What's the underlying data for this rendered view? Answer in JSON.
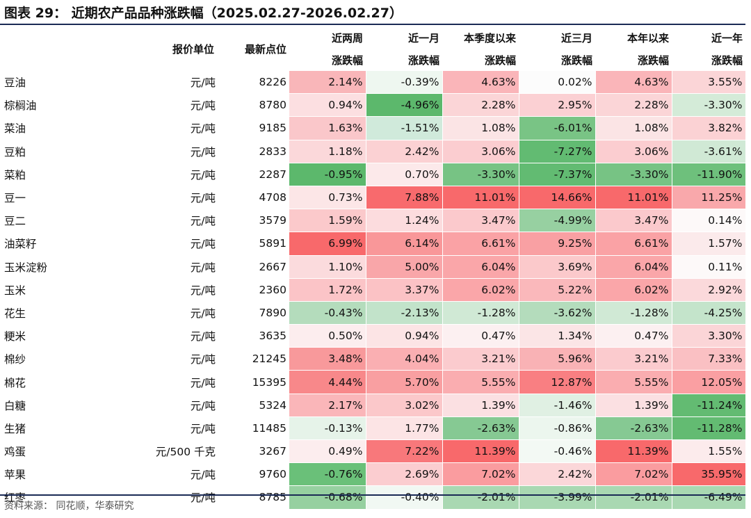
{
  "title": "图表 29：   近期农产品品种涨跌幅（2025.02.27-2026.02.27）",
  "headers": {
    "unit": "报价单位",
    "latest": "最新点位",
    "periods": [
      [
        "近两周",
        "涨跌幅"
      ],
      [
        "近一月",
        "涨跌幅"
      ],
      [
        "本季度以来",
        "涨跌幅"
      ],
      [
        "近三月",
        "涨跌幅"
      ],
      [
        "本年以来",
        "涨跌幅"
      ],
      [
        "近一年",
        "涨跌幅"
      ]
    ]
  },
  "rows": [
    {
      "name": "豆油",
      "unit": "元/吨",
      "latest": "8226",
      "values": [
        "2.14%",
        "-0.39%",
        "4.63%",
        "0.02%",
        "4.63%",
        "3.55%"
      ],
      "colors": [
        "#f9b6b9",
        "#eef7f0",
        "#fab5b9",
        "#fcfcfc",
        "#fab5b9",
        "#fbd5d7"
      ]
    },
    {
      "name": "棕榈油",
      "unit": "元/吨",
      "latest": "8780",
      "values": [
        "0.94%",
        "-4.96%",
        "2.28%",
        "2.95%",
        "2.28%",
        "-3.30%"
      ],
      "colors": [
        "#fcdfe1",
        "#5cb86c",
        "#fbd5d7",
        "#fbd0d3",
        "#fbd5d7",
        "#d4ebd8"
      ]
    },
    {
      "name": "菜油",
      "unit": "元/吨",
      "latest": "9185",
      "values": [
        "1.63%",
        "-1.51%",
        "1.08%",
        "-6.01%",
        "1.08%",
        "3.82%"
      ],
      "colors": [
        "#fac7ca",
        "#d0eadb",
        "#fbe4e5",
        "#79c485",
        "#fbe4e5",
        "#fbd2d4"
      ]
    },
    {
      "name": "豆粕",
      "unit": "元/吨",
      "latest": "2833",
      "values": [
        "1.18%",
        "2.42%",
        "3.06%",
        "-7.27%",
        "3.06%",
        "-3.61%"
      ],
      "colors": [
        "#fbd8da",
        "#fbd1d3",
        "#fbcdd0",
        "#62bb72",
        "#fbcdd0",
        "#d0e9d5"
      ]
    },
    {
      "name": "菜粕",
      "unit": "元/吨",
      "latest": "2287",
      "values": [
        "-0.95%",
        "0.70%",
        "-3.30%",
        "-7.37%",
        "-3.30%",
        "-11.90%"
      ],
      "colors": [
        "#5cb86c",
        "#fce9ea",
        "#77c384",
        "#62bb72",
        "#77c384",
        "#6ec07c"
      ]
    },
    {
      "name": "豆一",
      "unit": "元/吨",
      "latest": "4708",
      "values": [
        "0.73%",
        "7.88%",
        "11.01%",
        "14.66%",
        "11.01%",
        "11.25%"
      ],
      "colors": [
        "#fce6e7",
        "#f86a6d",
        "#f8696b",
        "#f8696b",
        "#f8696b",
        "#f9a8ab"
      ]
    },
    {
      "name": "豆二",
      "unit": "元/吨",
      "latest": "3579",
      "values": [
        "1.59%",
        "1.24%",
        "3.47%",
        "-4.99%",
        "3.47%",
        "0.14%"
      ],
      "colors": [
        "#fbc9cb",
        "#fcdcde",
        "#fbc9cc",
        "#97d0a1",
        "#fbc9cc",
        "#fdf9f9"
      ]
    },
    {
      "name": "油菜籽",
      "unit": "元/吨",
      "latest": "5891",
      "values": [
        "6.99%",
        "6.14%",
        "6.61%",
        "9.25%",
        "6.61%",
        "1.57%"
      ],
      "colors": [
        "#f8696b",
        "#f99799",
        "#faa2a5",
        "#f9a0a3",
        "#faa2a5",
        "#fbeaeb"
      ]
    },
    {
      "name": "玉米淀粉",
      "unit": "元/吨",
      "latest": "2667",
      "values": [
        "1.10%",
        "5.00%",
        "6.04%",
        "3.69%",
        "6.04%",
        "0.11%"
      ],
      "colors": [
        "#fbdbdd",
        "#f9a6a9",
        "#faa6a9",
        "#fbc9cb",
        "#faa6a9",
        "#fdf9f9"
      ]
    },
    {
      "name": "玉米",
      "unit": "元/吨",
      "latest": "2360",
      "values": [
        "1.72%",
        "3.37%",
        "6.02%",
        "5.22%",
        "6.02%",
        "2.92%"
      ],
      "colors": [
        "#fbc4c7",
        "#fbc2c5",
        "#faa6a9",
        "#fab8bb",
        "#faa6a9",
        "#fbd9db"
      ]
    },
    {
      "name": "花生",
      "unit": "元/吨",
      "latest": "7890",
      "values": [
        "-0.43%",
        "-2.13%",
        "-1.28%",
        "-3.62%",
        "-1.28%",
        "-4.25%"
      ],
      "colors": [
        "#b4dcbc",
        "#c2e3ca",
        "#d0e9d5",
        "#b4dcbc",
        "#d0e9d5",
        "#c4e4cb"
      ]
    },
    {
      "name": "粳米",
      "unit": "元/吨",
      "latest": "3635",
      "values": [
        "0.50%",
        "0.94%",
        "0.47%",
        "1.34%",
        "0.47%",
        "3.30%"
      ],
      "colors": [
        "#fcedee",
        "#fce4e5",
        "#fcf0f1",
        "#fbe5e6",
        "#fcf0f1",
        "#fbd5d7"
      ]
    },
    {
      "name": "棉纱",
      "unit": "元/吨",
      "latest": "21245",
      "values": [
        "3.48%",
        "4.04%",
        "3.21%",
        "5.96%",
        "3.21%",
        "7.33%"
      ],
      "colors": [
        "#f8999b",
        "#faafb2",
        "#fbcbce",
        "#f9b2b5",
        "#fbcbce",
        "#fac0c3"
      ]
    },
    {
      "name": "棉花",
      "unit": "元/吨",
      "latest": "15395",
      "values": [
        "4.44%",
        "5.70%",
        "5.55%",
        "12.87%",
        "5.55%",
        "12.05%"
      ],
      "colors": [
        "#f8888a",
        "#f99fa1",
        "#faadb0",
        "#f97f82",
        "#faadb0",
        "#fa9fa2"
      ]
    },
    {
      "name": "白糖",
      "unit": "元/吨",
      "latest": "5324",
      "values": [
        "2.17%",
        "3.02%",
        "1.39%",
        "-1.46%",
        "1.39%",
        "-11.24%"
      ],
      "colors": [
        "#fab6b9",
        "#fbc8ca",
        "#fbe0e2",
        "#e0f0e3",
        "#fbe0e2",
        "#63bb72"
      ]
    },
    {
      "name": "生猪",
      "unit": "元/吨",
      "latest": "11485",
      "values": [
        "-0.13%",
        "1.77%",
        "-2.63%",
        "-0.86%",
        "-2.63%",
        "-11.28%"
      ],
      "colors": [
        "#e6f3e9",
        "#fce4e5",
        "#86c993",
        "#ecf6ee",
        "#86c993",
        "#63bb72"
      ]
    },
    {
      "name": "鸡蛋",
      "unit": "元/500 千克",
      "latest": "3267",
      "values": [
        "0.49%",
        "7.22%",
        "11.39%",
        "-0.46%",
        "11.39%",
        "1.55%"
      ],
      "colors": [
        "#fcedee",
        "#f8787b",
        "#f8696b",
        "#f3f9f4",
        "#f8696b",
        "#fcebec"
      ]
    },
    {
      "name": "苹果",
      "unit": "元/吨",
      "latest": "9760",
      "values": [
        "-0.76%",
        "2.69%",
        "7.02%",
        "2.42%",
        "7.02%",
        "35.95%"
      ],
      "colors": [
        "#6ac079",
        "#fbcdd0",
        "#fa9c9f",
        "#fbd7d9",
        "#fa9c9f",
        "#f8696b"
      ]
    },
    {
      "name": "红枣",
      "unit": "元/吨",
      "latest": "8785",
      "values": [
        "-0.68%",
        "-0.40%",
        "-2.01%",
        "-3.99%",
        "-2.01%",
        "-6.49%"
      ],
      "colors": [
        "#96d0a0",
        "#f1f8f3",
        "#a9d8b2",
        "#a9d8b2",
        "#a9d8b2",
        "#a9d8b2"
      ]
    }
  ],
  "source": "资料来源：  同花顺，华泰研究"
}
